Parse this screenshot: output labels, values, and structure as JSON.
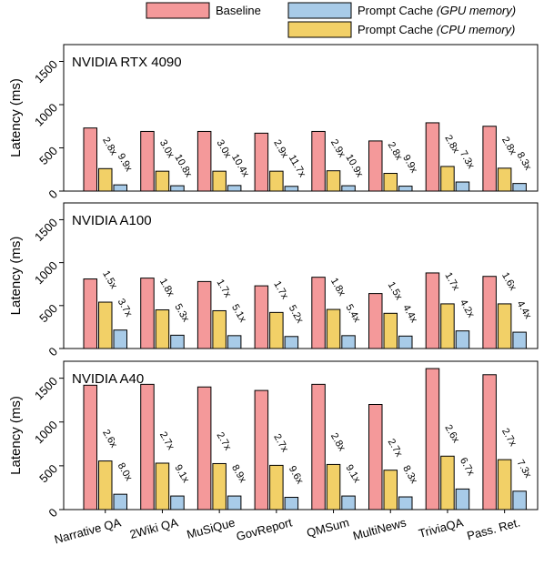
{
  "legend": {
    "baseline": "Baseline",
    "gpu_prefix": "Prompt Cache ",
    "gpu_suffix": "(GPU memory)",
    "cpu_prefix": "Prompt Cache ",
    "cpu_suffix": "(CPU memory)"
  },
  "colors": {
    "baseline": "#F4999A",
    "cpu": "#F2D067",
    "gpu": "#A8CBE8"
  },
  "chart_data": {
    "type": "bar",
    "categories": [
      "Narrative QA",
      "2Wiki QA",
      "MuSiQue",
      "GovReport",
      "QMSum",
      "MultiNews",
      "TriviaQA",
      "Pass. Ret."
    ],
    "ylabel": "Latency (ms)",
    "ylim": [
      0,
      1600
    ],
    "yticks": [
      "0",
      "500",
      "1000",
      "1500"
    ],
    "series_names": [
      "Baseline",
      "Prompt Cache (CPU memory)",
      "Prompt Cache (GPU memory)"
    ],
    "panels": [
      {
        "title": "NVIDIA RTX 4090",
        "baseline": [
          730,
          690,
          690,
          670,
          690,
          580,
          790,
          750
        ],
        "cpu": [
          260,
          230,
          230,
          230,
          235,
          205,
          285,
          265
        ],
        "gpu": [
          72,
          62,
          65,
          55,
          62,
          57,
          105,
          88
        ],
        "cpu_labels": [
          "2.8x",
          "3.0x",
          "3.0x",
          "2.9x",
          "2.9x",
          "2.8x",
          "2.8x",
          "2.8x"
        ],
        "gpu_labels": [
          "9.9x",
          "10.8x",
          "10.4x",
          "11.7x",
          "10.9x",
          "9.9x",
          "7.3x",
          "8.3x"
        ]
      },
      {
        "title": "NVIDIA A100",
        "baseline": [
          810,
          820,
          780,
          730,
          830,
          640,
          880,
          840
        ],
        "cpu": [
          540,
          450,
          440,
          420,
          455,
          410,
          520,
          520
        ],
        "gpu": [
          215,
          155,
          150,
          140,
          150,
          145,
          205,
          190
        ],
        "cpu_labels": [
          "1.5x",
          "1.8x",
          "1.7x",
          "1.7x",
          "1.8x",
          "1.5x",
          "1.7x",
          "1.6x"
        ],
        "gpu_labels": [
          "3.7x",
          "5.3x",
          "5.1x",
          "5.2x",
          "5.4x",
          "4.4x",
          "4.2x",
          "4.4x"
        ]
      },
      {
        "title": "NVIDIA A40",
        "baseline": [
          1420,
          1430,
          1400,
          1360,
          1430,
          1200,
          1610,
          1540
        ],
        "cpu": [
          555,
          530,
          525,
          505,
          515,
          450,
          610,
          570
        ],
        "gpu": [
          175,
          155,
          155,
          140,
          155,
          145,
          235,
          210
        ],
        "cpu_labels": [
          "2.6x",
          "2.7x",
          "2.7x",
          "2.7x",
          "2.8x",
          "2.7x",
          "2.6x",
          "2.7x"
        ],
        "gpu_labels": [
          "8.0x",
          "9.1x",
          "8.9x",
          "9.6x",
          "9.1x",
          "8.3x",
          "6.7x",
          "7.3x"
        ]
      }
    ]
  }
}
